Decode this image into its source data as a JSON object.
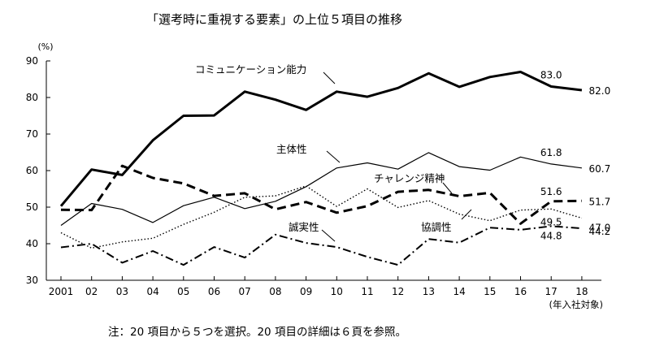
{
  "chart_data": {
    "type": "line",
    "title": "「選考時に重視する要素」の上位５項目の推移",
    "unit_label": "(%)",
    "x_unit_label": "(年入社対象)",
    "note": "注：20 項目から５つを選択。20 項目の詳細は６頁を参照。",
    "categories": [
      "2001",
      "02",
      "03",
      "04",
      "05",
      "06",
      "07",
      "08",
      "09",
      "10",
      "11",
      "12",
      "13",
      "14",
      "15",
      "16",
      "17",
      "18"
    ],
    "ylim": [
      30,
      90
    ],
    "yticks": [
      30,
      40,
      50,
      60,
      70,
      80,
      90
    ],
    "grid": false,
    "series": [
      {
        "name": "コミュニケーション能力",
        "style": "thick-solid",
        "values": [
          50.3,
          60.3,
          58.8,
          68.3,
          75.0,
          75.1,
          81.6,
          79.4,
          76.6,
          81.6,
          80.2,
          82.6,
          86.6,
          82.9,
          85.6,
          87.0,
          83.0,
          82.0
        ]
      },
      {
        "name": "主体性",
        "style": "thin-solid",
        "values": [
          45.0,
          51.0,
          49.4,
          45.8,
          50.4,
          52.7,
          49.6,
          51.6,
          55.6,
          60.7,
          62.1,
          60.4,
          64.9,
          61.1,
          60.1,
          63.7,
          61.8,
          60.7
        ]
      },
      {
        "name": "チャレンジ精神",
        "style": "thick-dashed",
        "values": [
          49.3,
          49.2,
          61.3,
          58.0,
          56.5,
          53.1,
          53.8,
          49.4,
          51.4,
          48.5,
          50.3,
          54.2,
          54.7,
          53.0,
          53.9,
          45.5,
          51.6,
          51.7
        ]
      },
      {
        "name": "協調性",
        "style": "dotted",
        "values": [
          43.0,
          38.8,
          40.5,
          41.5,
          45.3,
          48.6,
          52.7,
          53.1,
          55.8,
          50.2,
          55.0,
          49.9,
          51.8,
          48.1,
          46.3,
          49.2,
          49.5,
          47.0
        ]
      },
      {
        "name": "誠実性",
        "style": "dash-dot",
        "values": [
          39.0,
          40.0,
          34.8,
          38.0,
          34.2,
          39.1,
          36.2,
          42.5,
          40.2,
          39.1,
          36.4,
          34.2,
          41.3,
          40.3,
          44.4,
          43.8,
          44.8,
          44.2
        ]
      }
    ],
    "data_labels": [
      {
        "series": 0,
        "index": 16,
        "text": "83.0"
      },
      {
        "series": 0,
        "index": 17,
        "text": "82.0"
      },
      {
        "series": 1,
        "index": 16,
        "text": "61.8"
      },
      {
        "series": 1,
        "index": 17,
        "text": "60.7"
      },
      {
        "series": 2,
        "index": 16,
        "text": "51.6"
      },
      {
        "series": 2,
        "index": 17,
        "text": "51.7"
      },
      {
        "series": 3,
        "index": 16,
        "text": "49.5"
      },
      {
        "series": 3,
        "index": 17,
        "text": "47.0"
      },
      {
        "series": 4,
        "index": 16,
        "text": "44.8"
      },
      {
        "series": 4,
        "index": 17,
        "text": "44.2"
      }
    ]
  }
}
